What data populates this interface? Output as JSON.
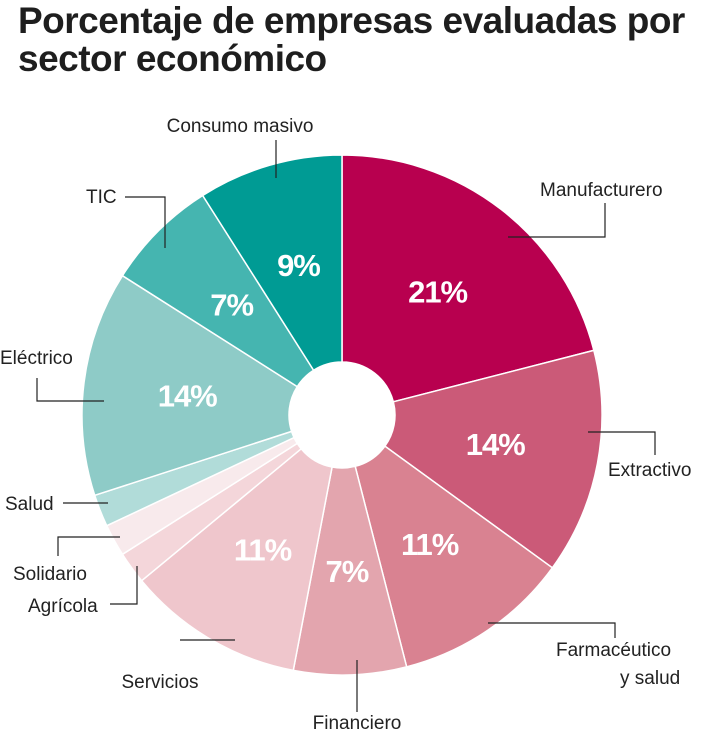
{
  "chart_data": {
    "type": "pie",
    "title": "Porcentaje de empresas evaluadas por sector económico",
    "donut": true,
    "slices": [
      {
        "label": "Manufacturero",
        "value": 21,
        "value_label": "21%",
        "color": "#b8004f"
      },
      {
        "label": "Extractivo",
        "value": 14,
        "value_label": "14%",
        "color": "#cb5a78"
      },
      {
        "label": "Farmacéutico y salud",
        "value": 11,
        "value_label": "11%",
        "color": "#d98291"
      },
      {
        "label": "Financiero",
        "value": 7,
        "value_label": "7%",
        "color": "#e3a5ae"
      },
      {
        "label": "Servicios",
        "value": 11,
        "value_label": "11%",
        "color": "#efc6cc"
      },
      {
        "label": "Agrícola",
        "value": 2,
        "value_label": "",
        "color": "#f4d6da"
      },
      {
        "label": "Solidario",
        "value": 2,
        "value_label": "",
        "color": "#f8eaec"
      },
      {
        "label": "Salud",
        "value": 2,
        "value_label": "",
        "color": "#b1dcd9"
      },
      {
        "label": "Eléctrico",
        "value": 14,
        "value_label": "14%",
        "color": "#8ecbc7"
      },
      {
        "label": "TIC",
        "value": 7,
        "value_label": "7%",
        "color": "#45b5b0"
      },
      {
        "label": "Consumo masivo",
        "value": 9,
        "value_label": "9%",
        "color": "#009b94"
      }
    ]
  }
}
